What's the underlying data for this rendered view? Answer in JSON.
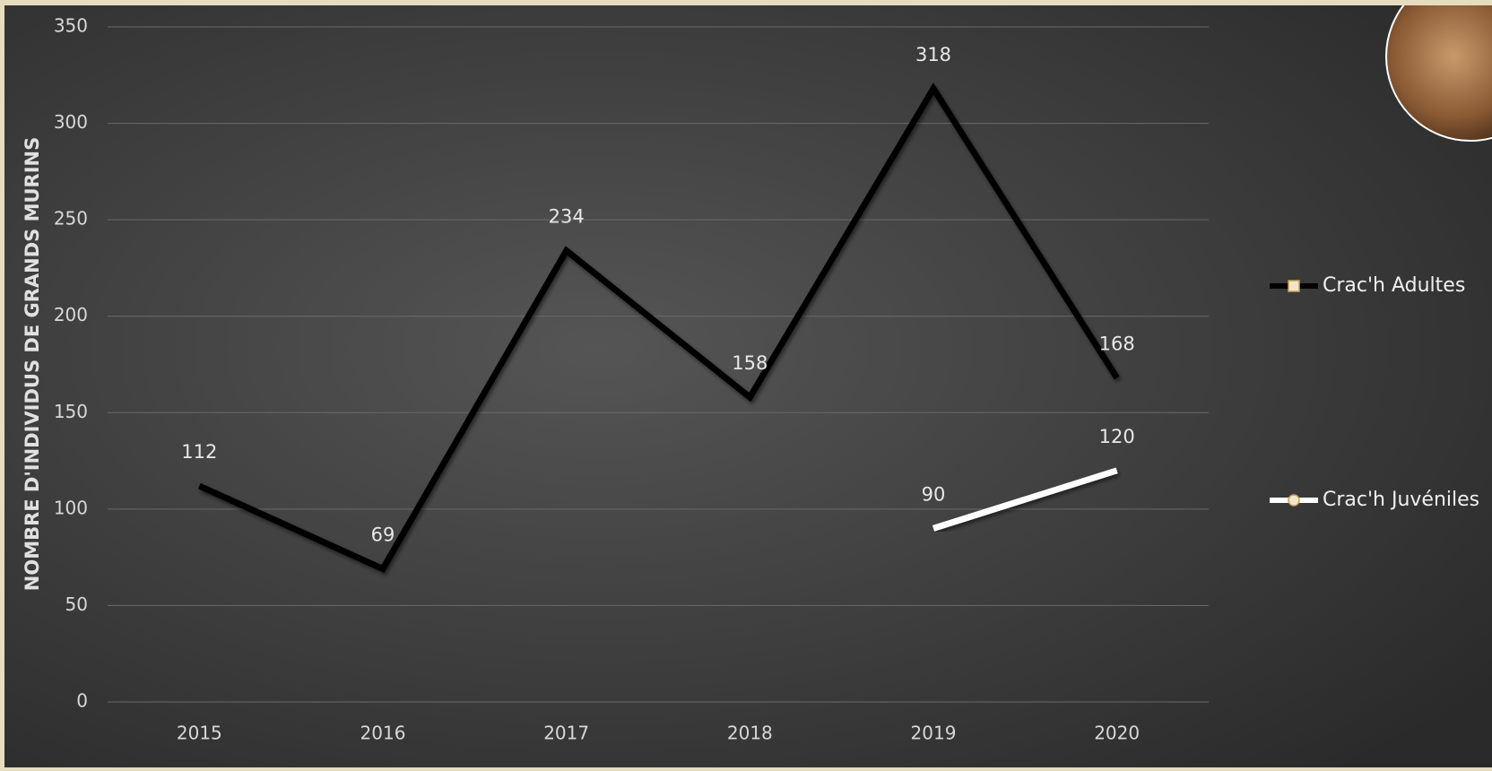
{
  "chart_data": {
    "type": "line",
    "y_label": "NOMBRE D'INDIVIDUS DE GRANDS MURINS",
    "categories": [
      "2015",
      "2016",
      "2017",
      "2018",
      "2019",
      "2020"
    ],
    "series": [
      {
        "name": "Crac'h Adultes",
        "color": "#000000",
        "values": [
          112,
          69,
          234,
          158,
          318,
          168
        ]
      },
      {
        "name": "Crac'h Juvéniles",
        "color": "#ffffff",
        "values": [
          null,
          null,
          null,
          null,
          90,
          120
        ]
      }
    ],
    "ylim": [
      0,
      350
    ],
    "yticks": [
      0,
      50,
      100,
      150,
      200,
      250,
      300,
      350
    ],
    "grid": true,
    "legend": "right"
  }
}
